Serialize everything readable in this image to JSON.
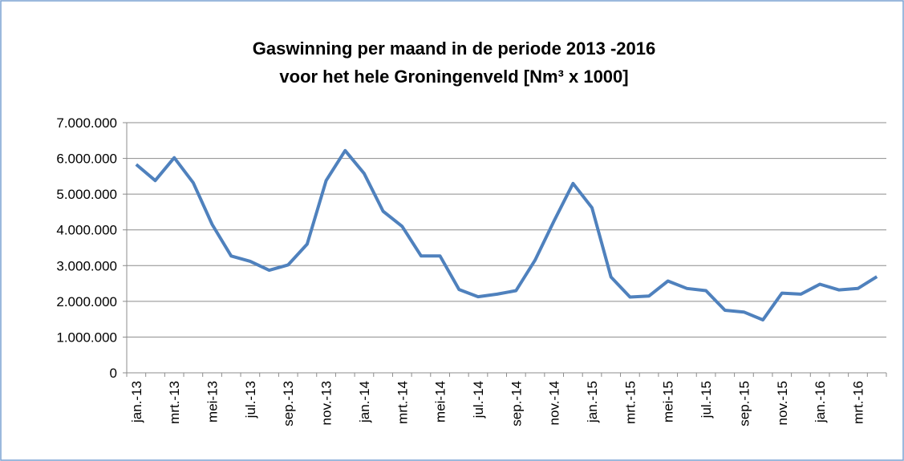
{
  "chart_data": {
    "type": "line",
    "title": [
      "Gaswinning per maand  in de periode 2013 -2016",
      "voor het hele Groningenveld [Nm³ x 1000]"
    ],
    "categories": [
      "jan.-13",
      null,
      "mrt.-13",
      null,
      "mei-13",
      null,
      "jul.-13",
      null,
      "sep.-13",
      null,
      "nov.-13",
      null,
      "jan.-14",
      null,
      "mrt.-14",
      null,
      "mei-14",
      null,
      "jul.-14",
      null,
      "sep.-14",
      null,
      "nov.-14",
      null,
      "jan.-15",
      null,
      "mrt.-15",
      null,
      "mei-15",
      null,
      "jul.-15",
      null,
      "sep.-15",
      null,
      "nov.-15",
      null,
      "jan.-16",
      null,
      "mrt.-16",
      null
    ],
    "series": [
      {
        "name": "Gaswinning",
        "color": "#4f81bd",
        "values": [
          5830000,
          5380000,
          6020000,
          5320000,
          4150000,
          3270000,
          3120000,
          2870000,
          3020000,
          3600000,
          5380000,
          6220000,
          5580000,
          4520000,
          4100000,
          3270000,
          3270000,
          2330000,
          2130000,
          2200000,
          2300000,
          3150000,
          4250000,
          5300000,
          4620000,
          2680000,
          2120000,
          2150000,
          2570000,
          2360000,
          2300000,
          1750000,
          1700000,
          1480000,
          2230000,
          2200000,
          2480000,
          2320000,
          2360000,
          2690000
        ]
      }
    ],
    "ylim": [
      0,
      7000000
    ],
    "yticks": [
      0,
      {
        "value": 1000000,
        "label": "1.000.000"
      },
      {
        "value": 2000000,
        "label": "2.000.000"
      },
      {
        "value": 3000000,
        "label": "3.000.000"
      },
      {
        "value": 4000000,
        "label": "4.000.000"
      },
      {
        "value": 5000000,
        "label": "5.000.000"
      },
      {
        "value": 6000000,
        "label": "6.000.000"
      },
      {
        "value": 7000000,
        "label": "7.000.000"
      }
    ],
    "grid": true
  }
}
